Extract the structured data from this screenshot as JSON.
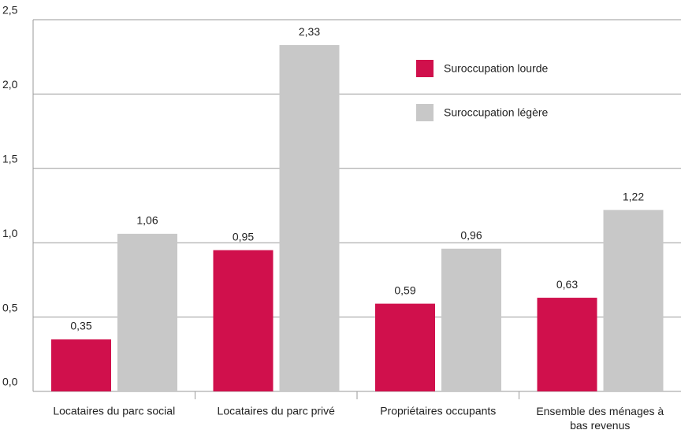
{
  "chart_data": {
    "type": "bar",
    "categories": [
      "Locataires du parc social",
      "Locataires du parc privé",
      "Propriétaires occupants",
      "Ensemble des ménages à bas revenus"
    ],
    "series": [
      {
        "name": "Suroccupation lourde",
        "color": "#d0104c",
        "values": [
          0.35,
          0.95,
          0.59,
          0.63
        ],
        "value_labels": [
          "0,35",
          "0,95",
          "0,59",
          "0,63"
        ]
      },
      {
        "name": "Suroccupation légère",
        "color": "#c8c8c8",
        "values": [
          1.06,
          2.33,
          0.96,
          1.22
        ],
        "value_labels": [
          "1,06",
          "2,33",
          "0,96",
          "1,22"
        ]
      }
    ],
    "ylim": [
      0,
      2.5
    ],
    "yticks": [
      {
        "value": 0,
        "label": "0,0"
      },
      {
        "value": 0.5,
        "label": "0,5"
      },
      {
        "value": 1,
        "label": "1,0"
      },
      {
        "value": 1.5,
        "label": "1,5"
      },
      {
        "value": 2,
        "label": "2,0"
      },
      {
        "value": 2.5,
        "label": "2,5"
      }
    ],
    "grid": true
  }
}
